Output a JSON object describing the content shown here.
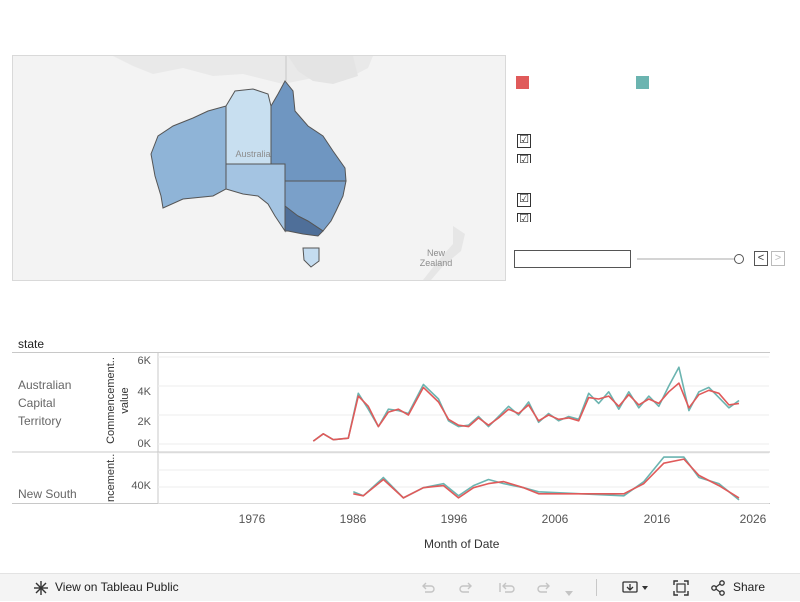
{
  "map": {
    "labels": {
      "country_australia": "Australia",
      "country_nz": "New\nZealand"
    },
    "colors": {
      "WA": "#8fb4d7",
      "NT": "#c8dff0",
      "SA": "#a4c4e2",
      "QLD": "#6f96c1",
      "NSW": "#7aa0c9",
      "VIC": "#4f6f99",
      "TAS": "#c4dcf0",
      "ACT": "#b0cbe6"
    }
  },
  "legend": {
    "series_colors": [
      "#e05a5a",
      "#6bb4b0"
    ],
    "checkboxes_group1": [
      "☑",
      "☑"
    ],
    "checkboxes_group2": [
      "☑",
      "☑"
    ]
  },
  "date_filter": {
    "input_value": "",
    "slider_position": 1.0,
    "prev_glyph": "<",
    "next_glyph": ">"
  },
  "chart": {
    "row_header": "state",
    "rows": [
      {
        "label": "Australian\nCapital\nTerritory",
        "axis_title": "Commencement..\nvalue",
        "y_ticks": [
          "6K",
          "4K",
          "2K",
          "0K"
        ]
      },
      {
        "label": "New South",
        "axis_title": "ncement..",
        "y_ticks": [
          "40K"
        ]
      }
    ],
    "x_ticks": [
      "1976",
      "1986",
      "1996",
      "2006",
      "2016",
      "2026"
    ],
    "x_title": "Month of Date"
  },
  "chart_data": {
    "type": "line",
    "xlabel": "Month of Date",
    "series_colors": [
      "#e05a5a",
      "#6bb4b0"
    ],
    "panels": [
      {
        "state": "Australian Capital Territory",
        "ylim": [
          0,
          6000
        ],
        "x": [
          1981.5,
          1982.5,
          1983.5,
          1985.0,
          1986.0,
          1987.0,
          1988.0,
          1989.0,
          1990.0,
          1991.0,
          1992.5,
          1994.0,
          1995.0,
          1996.0,
          1997.0,
          1998.0,
          1999.0,
          2000.0,
          2001.0,
          2002.0,
          2003.0,
          2004.0,
          2005.0,
          2006.0,
          2007.0,
          2008.0,
          2009.0,
          2010.0,
          2011.0,
          2012.0,
          2013.0,
          2014.0,
          2015.0,
          2016.0,
          2017.0,
          2018.0,
          2019.0,
          2020.0,
          2021.0,
          2022.0,
          2023.0,
          2024.0
        ],
        "series_a": [
          200,
          700,
          300,
          400,
          3300,
          2600,
          1200,
          2200,
          2400,
          2000,
          3900,
          2900,
          1700,
          1300,
          1200,
          1800,
          1300,
          1800,
          2400,
          2100,
          2700,
          1600,
          2000,
          1700,
          1800,
          1600,
          3200,
          3100,
          3300,
          2600,
          3400,
          2700,
          3100,
          2800,
          3600,
          4200,
          2500,
          3400,
          3700,
          3500,
          2700,
          2800
        ],
        "series_b": [
          200,
          700,
          300,
          400,
          3500,
          2400,
          1200,
          2400,
          2300,
          2100,
          4100,
          3100,
          1600,
          1200,
          1300,
          1900,
          1200,
          1900,
          2600,
          2000,
          2900,
          1500,
          2100,
          1600,
          1900,
          1700,
          3500,
          2800,
          3600,
          2400,
          3600,
          2500,
          3300,
          2600,
          4000,
          5300,
          2300,
          3600,
          3900,
          3200,
          2500,
          3000
        ]
      },
      {
        "state": "New South",
        "ylim": [
          30000,
          55000
        ],
        "x": [
          1985.5,
          1986.5,
          1988.5,
          1990.5,
          1992.5,
          1994.5,
          1996.0,
          1997.5,
          1999.0,
          2000.5,
          2002.5,
          2004.0,
          2012.5,
          2014.5,
          2016.5,
          2018.5,
          2020.0,
          2022.0,
          2024.0
        ],
        "series_a": [
          35000,
          34000,
          42000,
          33000,
          38000,
          39000,
          33000,
          38000,
          40000,
          41000,
          38000,
          35000,
          35000,
          40000,
          50000,
          52000,
          44000,
          39000,
          33000
        ],
        "series_b": [
          36000,
          34000,
          43000,
          33000,
          38000,
          40000,
          34000,
          39000,
          42000,
          40000,
          38000,
          36000,
          34000,
          41000,
          53000,
          53000,
          43000,
          40000,
          32000
        ]
      }
    ]
  },
  "toolbar": {
    "view_label": "View on Tableau Public",
    "share_label": "Share"
  }
}
